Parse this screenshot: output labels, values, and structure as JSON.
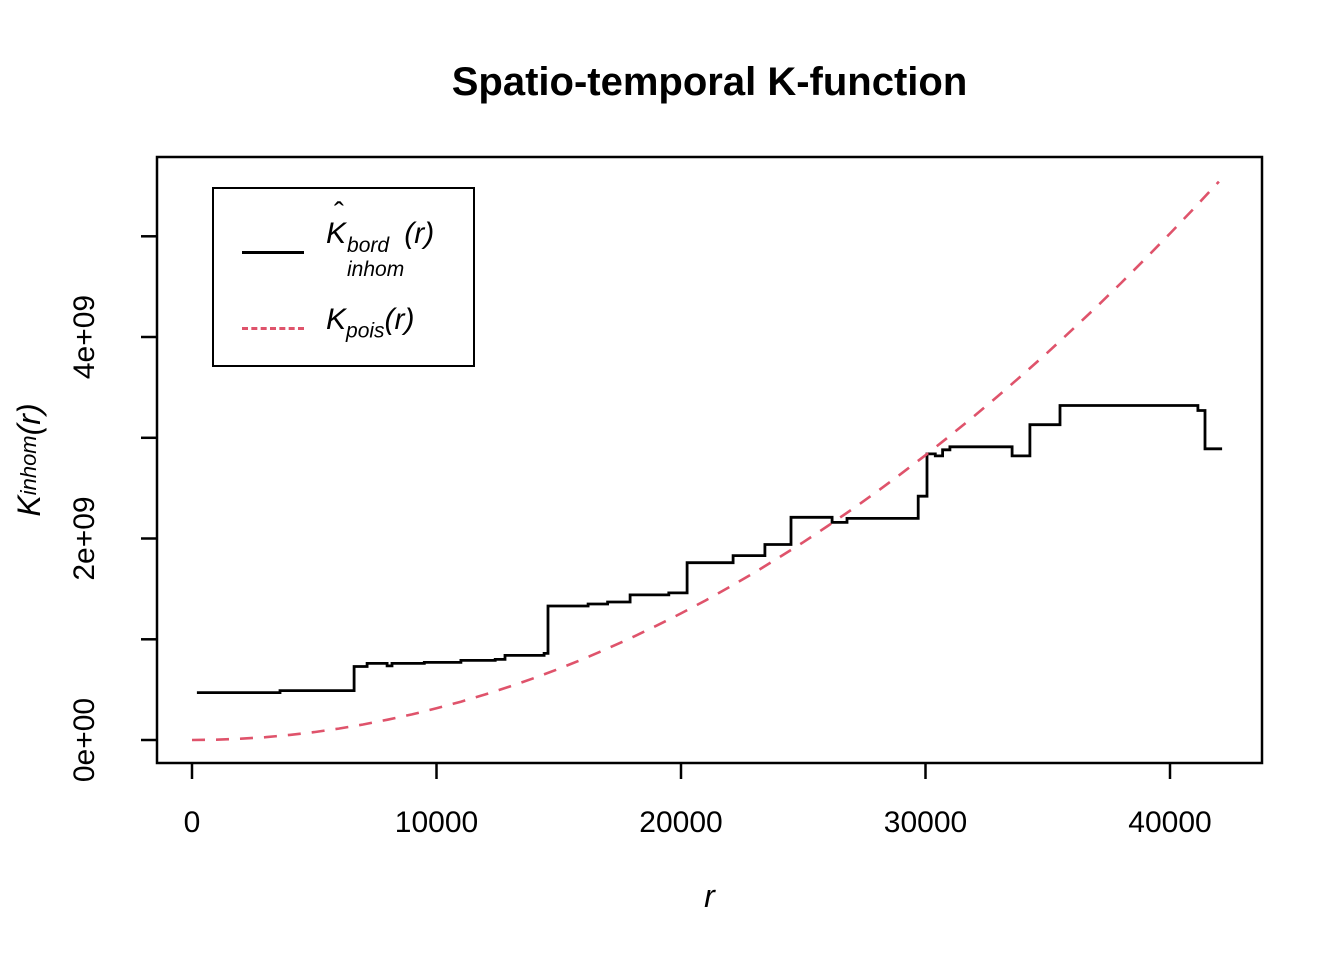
{
  "title": "Spatio-temporal K-function",
  "colors": {
    "foreground": "#000000",
    "pois_red": "#DF536B",
    "background": "#FFFFFF"
  },
  "legend": {
    "entries": [
      {
        "label": "Khat^bord_inhom(r)",
        "base": "K",
        "hat": "ˆ",
        "sup": "bord",
        "sub": "inhom",
        "args": "(r)",
        "line_style": "solid",
        "color": "#000000"
      },
      {
        "label": "K_pois(r)",
        "base": "K",
        "hat": "",
        "sup": "",
        "sub": "pois",
        "args": "(r)",
        "line_style": "dashed",
        "color": "#DF536B"
      }
    ]
  },
  "chart_data": {
    "type": "line",
    "title": "Spatio-temporal K-function",
    "xlabel": "r",
    "ylabel": "K_inhom(r)",
    "ylabel_parts": {
      "base": "K",
      "sub": "inhom",
      "args": "(r)"
    },
    "xlim": [
      -1430,
      43800
    ],
    "ylim": [
      -230000000,
      5790000000
    ],
    "grid": false,
    "legend_position": "top-left",
    "x_ticks": [
      {
        "value": 0,
        "label": "0"
      },
      {
        "value": 10000,
        "label": "10000"
      },
      {
        "value": 20000,
        "label": "20000"
      },
      {
        "value": 30000,
        "label": "30000"
      },
      {
        "value": 40000,
        "label": "40000"
      }
    ],
    "y_ticks": [
      {
        "value": 0,
        "label": "0e+00"
      },
      {
        "value": 1000000000.0,
        "label": ""
      },
      {
        "value": 2000000000.0,
        "label": "2e+09"
      },
      {
        "value": 3000000000.0,
        "label": ""
      },
      {
        "value": 4000000000.0,
        "label": "4e+09"
      },
      {
        "value": 5000000000.0,
        "label": ""
      }
    ],
    "series": [
      {
        "name": "Khat_bord_inhom",
        "type": "step",
        "line_style": "solid",
        "color": "#000000",
        "points": [
          [
            200,
            470000000.0
          ],
          [
            3600,
            490000000.0
          ],
          [
            6630,
            730000000.0
          ],
          [
            7160,
            760000000.0
          ],
          [
            7980,
            735000000.0
          ],
          [
            8180,
            760000000.0
          ],
          [
            9500,
            770000000.0
          ],
          [
            11000,
            790000000.0
          ],
          [
            12400,
            800000000.0
          ],
          [
            12800,
            840000000.0
          ],
          [
            14400,
            860000000.0
          ],
          [
            14560,
            1330000000.0
          ],
          [
            16200,
            1350000000.0
          ],
          [
            17000,
            1370000000.0
          ],
          [
            17920,
            1440000000.0
          ],
          [
            19500,
            1460000000.0
          ],
          [
            20250,
            1760000000.0
          ],
          [
            22130,
            1830000000.0
          ],
          [
            23430,
            1940000000.0
          ],
          [
            24500,
            2210000000.0
          ],
          [
            26180,
            2160000000.0
          ],
          [
            26790,
            2200000000.0
          ],
          [
            29700,
            2420000000.0
          ],
          [
            30060,
            2840000000.0
          ],
          [
            30400,
            2820000000.0
          ],
          [
            30700,
            2880000000.0
          ],
          [
            31000,
            2910000000.0
          ],
          [
            33540,
            2820000000.0
          ],
          [
            34270,
            3130000000.0
          ],
          [
            35500,
            3320000000.0
          ],
          [
            41140,
            3270000000.0
          ],
          [
            41430,
            2890000000.0
          ],
          [
            42130,
            2890000000.0
          ]
        ]
      },
      {
        "name": "K_pois",
        "type": "line",
        "line_style": "dashed",
        "color": "#DF536B",
        "formula": "pi*r^2",
        "points": [
          [
            0,
            0
          ],
          [
            1000,
            3142000.0
          ],
          [
            2000,
            12570000.0
          ],
          [
            3000,
            28270000.0
          ],
          [
            4000,
            50270000.0
          ],
          [
            5000,
            78540000.0
          ],
          [
            6000,
            113100000.0
          ],
          [
            7000,
            153900000.0
          ],
          [
            8000,
            201100000.0
          ],
          [
            9000,
            254500000.0
          ],
          [
            10000,
            314200000.0
          ],
          [
            11000,
            380100000.0
          ],
          [
            12000,
            452400000.0
          ],
          [
            13000,
            530900000.0
          ],
          [
            14000,
            615800000.0
          ],
          [
            15000,
            706900000.0
          ],
          [
            16000,
            804200000.0
          ],
          [
            17000,
            907900000.0
          ],
          [
            18000,
            1018000000.0
          ],
          [
            19000,
            1134000000.0
          ],
          [
            20000,
            1257000000.0
          ],
          [
            21000,
            1385000000.0
          ],
          [
            22000,
            1521000000.0
          ],
          [
            23000,
            1662000000.0
          ],
          [
            24000,
            1810000000.0
          ],
          [
            25000,
            1963000000.0
          ],
          [
            26000,
            2124000000.0
          ],
          [
            27000,
            2290000000.0
          ],
          [
            28000,
            2463000000.0
          ],
          [
            29000,
            2642000000.0
          ],
          [
            30000,
            2827000000.0
          ],
          [
            31000,
            3019000000.0
          ],
          [
            32000,
            3217000000.0
          ],
          [
            33000,
            3421000000.0
          ],
          [
            34000,
            3632000000.0
          ],
          [
            35000,
            3848000000.0
          ],
          [
            36000,
            4072000000.0
          ],
          [
            37000,
            4301000000.0
          ],
          [
            38000,
            4536000000.0
          ],
          [
            39000,
            4778000000.0
          ],
          [
            40000,
            5027000000.0
          ],
          [
            41000,
            5281000000.0
          ],
          [
            42000,
            5542000000.0
          ]
        ]
      }
    ]
  }
}
